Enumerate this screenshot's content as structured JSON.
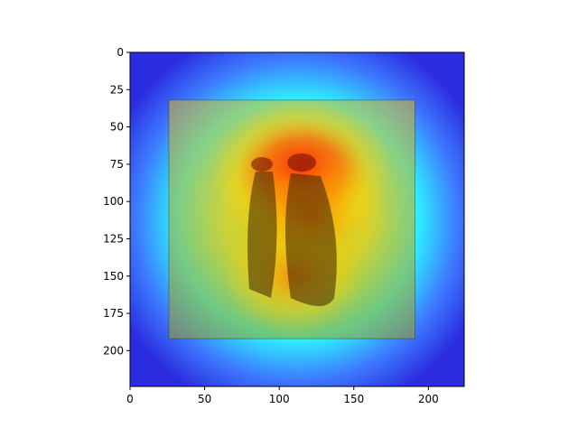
{
  "chart_data": {
    "type": "heatmap",
    "description_visible": "heatmap overlay on an image",
    "title": "",
    "xlabel": "",
    "ylabel": "",
    "xlim": [
      0,
      224
    ],
    "ylim": [
      224,
      0
    ],
    "x_ticks": [
      0,
      50,
      100,
      150,
      200
    ],
    "y_ticks": [
      0,
      25,
      50,
      75,
      100,
      125,
      150,
      175,
      200
    ],
    "x_tick_labels": [
      "0",
      "50",
      "100",
      "150",
      "200"
    ],
    "y_tick_labels": [
      "0",
      "25",
      "50",
      "75",
      "100",
      "125",
      "150",
      "175",
      "200"
    ],
    "grid": false,
    "legend": "none",
    "colormap": "jet",
    "hotspots": [
      {
        "x": 115,
        "y": 80,
        "intensity": 1.0
      },
      {
        "x": 120,
        "y": 110,
        "intensity": 0.85
      },
      {
        "x": 110,
        "y": 150,
        "intensity": 0.65
      }
    ],
    "image_inset_extent": {
      "x0": 26,
      "x1": 191,
      "y0": 32,
      "y1": 192
    }
  }
}
